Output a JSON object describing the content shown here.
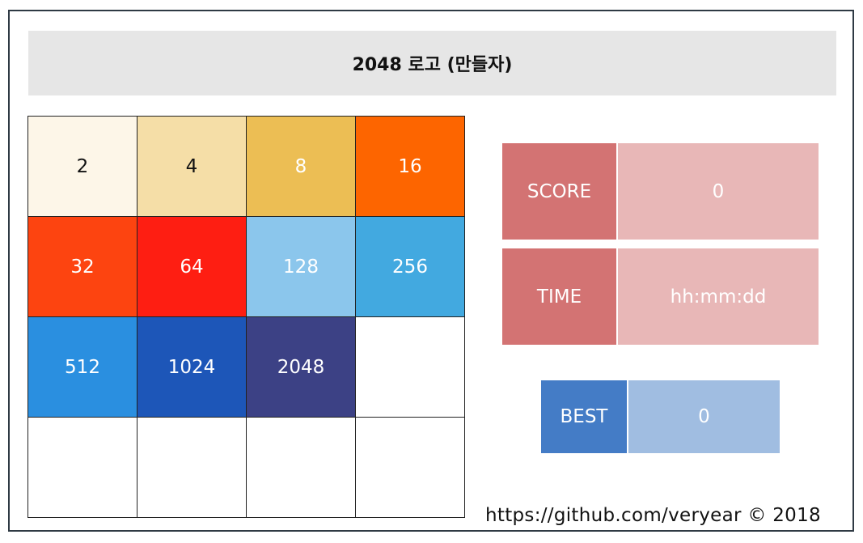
{
  "header": {
    "title": "2048 로고 (만들자)"
  },
  "board": {
    "tiles": [
      {
        "value": "2",
        "bg": "#fdf6e8",
        "fg": "#111111"
      },
      {
        "value": "4",
        "bg": "#f5dea7",
        "fg": "#111111"
      },
      {
        "value": "8",
        "bg": "#ecbe54",
        "fg": "#ffffff"
      },
      {
        "value": "16",
        "bg": "#fd6500",
        "fg": "#ffffff"
      },
      {
        "value": "32",
        "bg": "#fd4410",
        "fg": "#ffffff"
      },
      {
        "value": "64",
        "bg": "#fe1e12",
        "fg": "#ffffff"
      },
      {
        "value": "128",
        "bg": "#8bc6ec",
        "fg": "#ffffff"
      },
      {
        "value": "256",
        "bg": "#42a9e0",
        "fg": "#ffffff"
      },
      {
        "value": "512",
        "bg": "#2a8fe0",
        "fg": "#ffffff"
      },
      {
        "value": "1024",
        "bg": "#1d56b8",
        "fg": "#ffffff"
      },
      {
        "value": "2048",
        "bg": "#3c4185",
        "fg": "#ffffff"
      },
      {
        "value": "",
        "bg": "#ffffff",
        "fg": "#ffffff"
      },
      {
        "value": "",
        "bg": "#ffffff",
        "fg": "#ffffff"
      },
      {
        "value": "",
        "bg": "#ffffff",
        "fg": "#ffffff"
      },
      {
        "value": "",
        "bg": "#ffffff",
        "fg": "#ffffff"
      },
      {
        "value": "",
        "bg": "#ffffff",
        "fg": "#ffffff"
      }
    ]
  },
  "score": {
    "label": "SCORE",
    "value": "0"
  },
  "time": {
    "label": "TIME",
    "value": "hh:mm:dd"
  },
  "best": {
    "label": "BEST",
    "value": "0"
  },
  "footer": {
    "text": "https://github.com/veryear © 2018"
  }
}
